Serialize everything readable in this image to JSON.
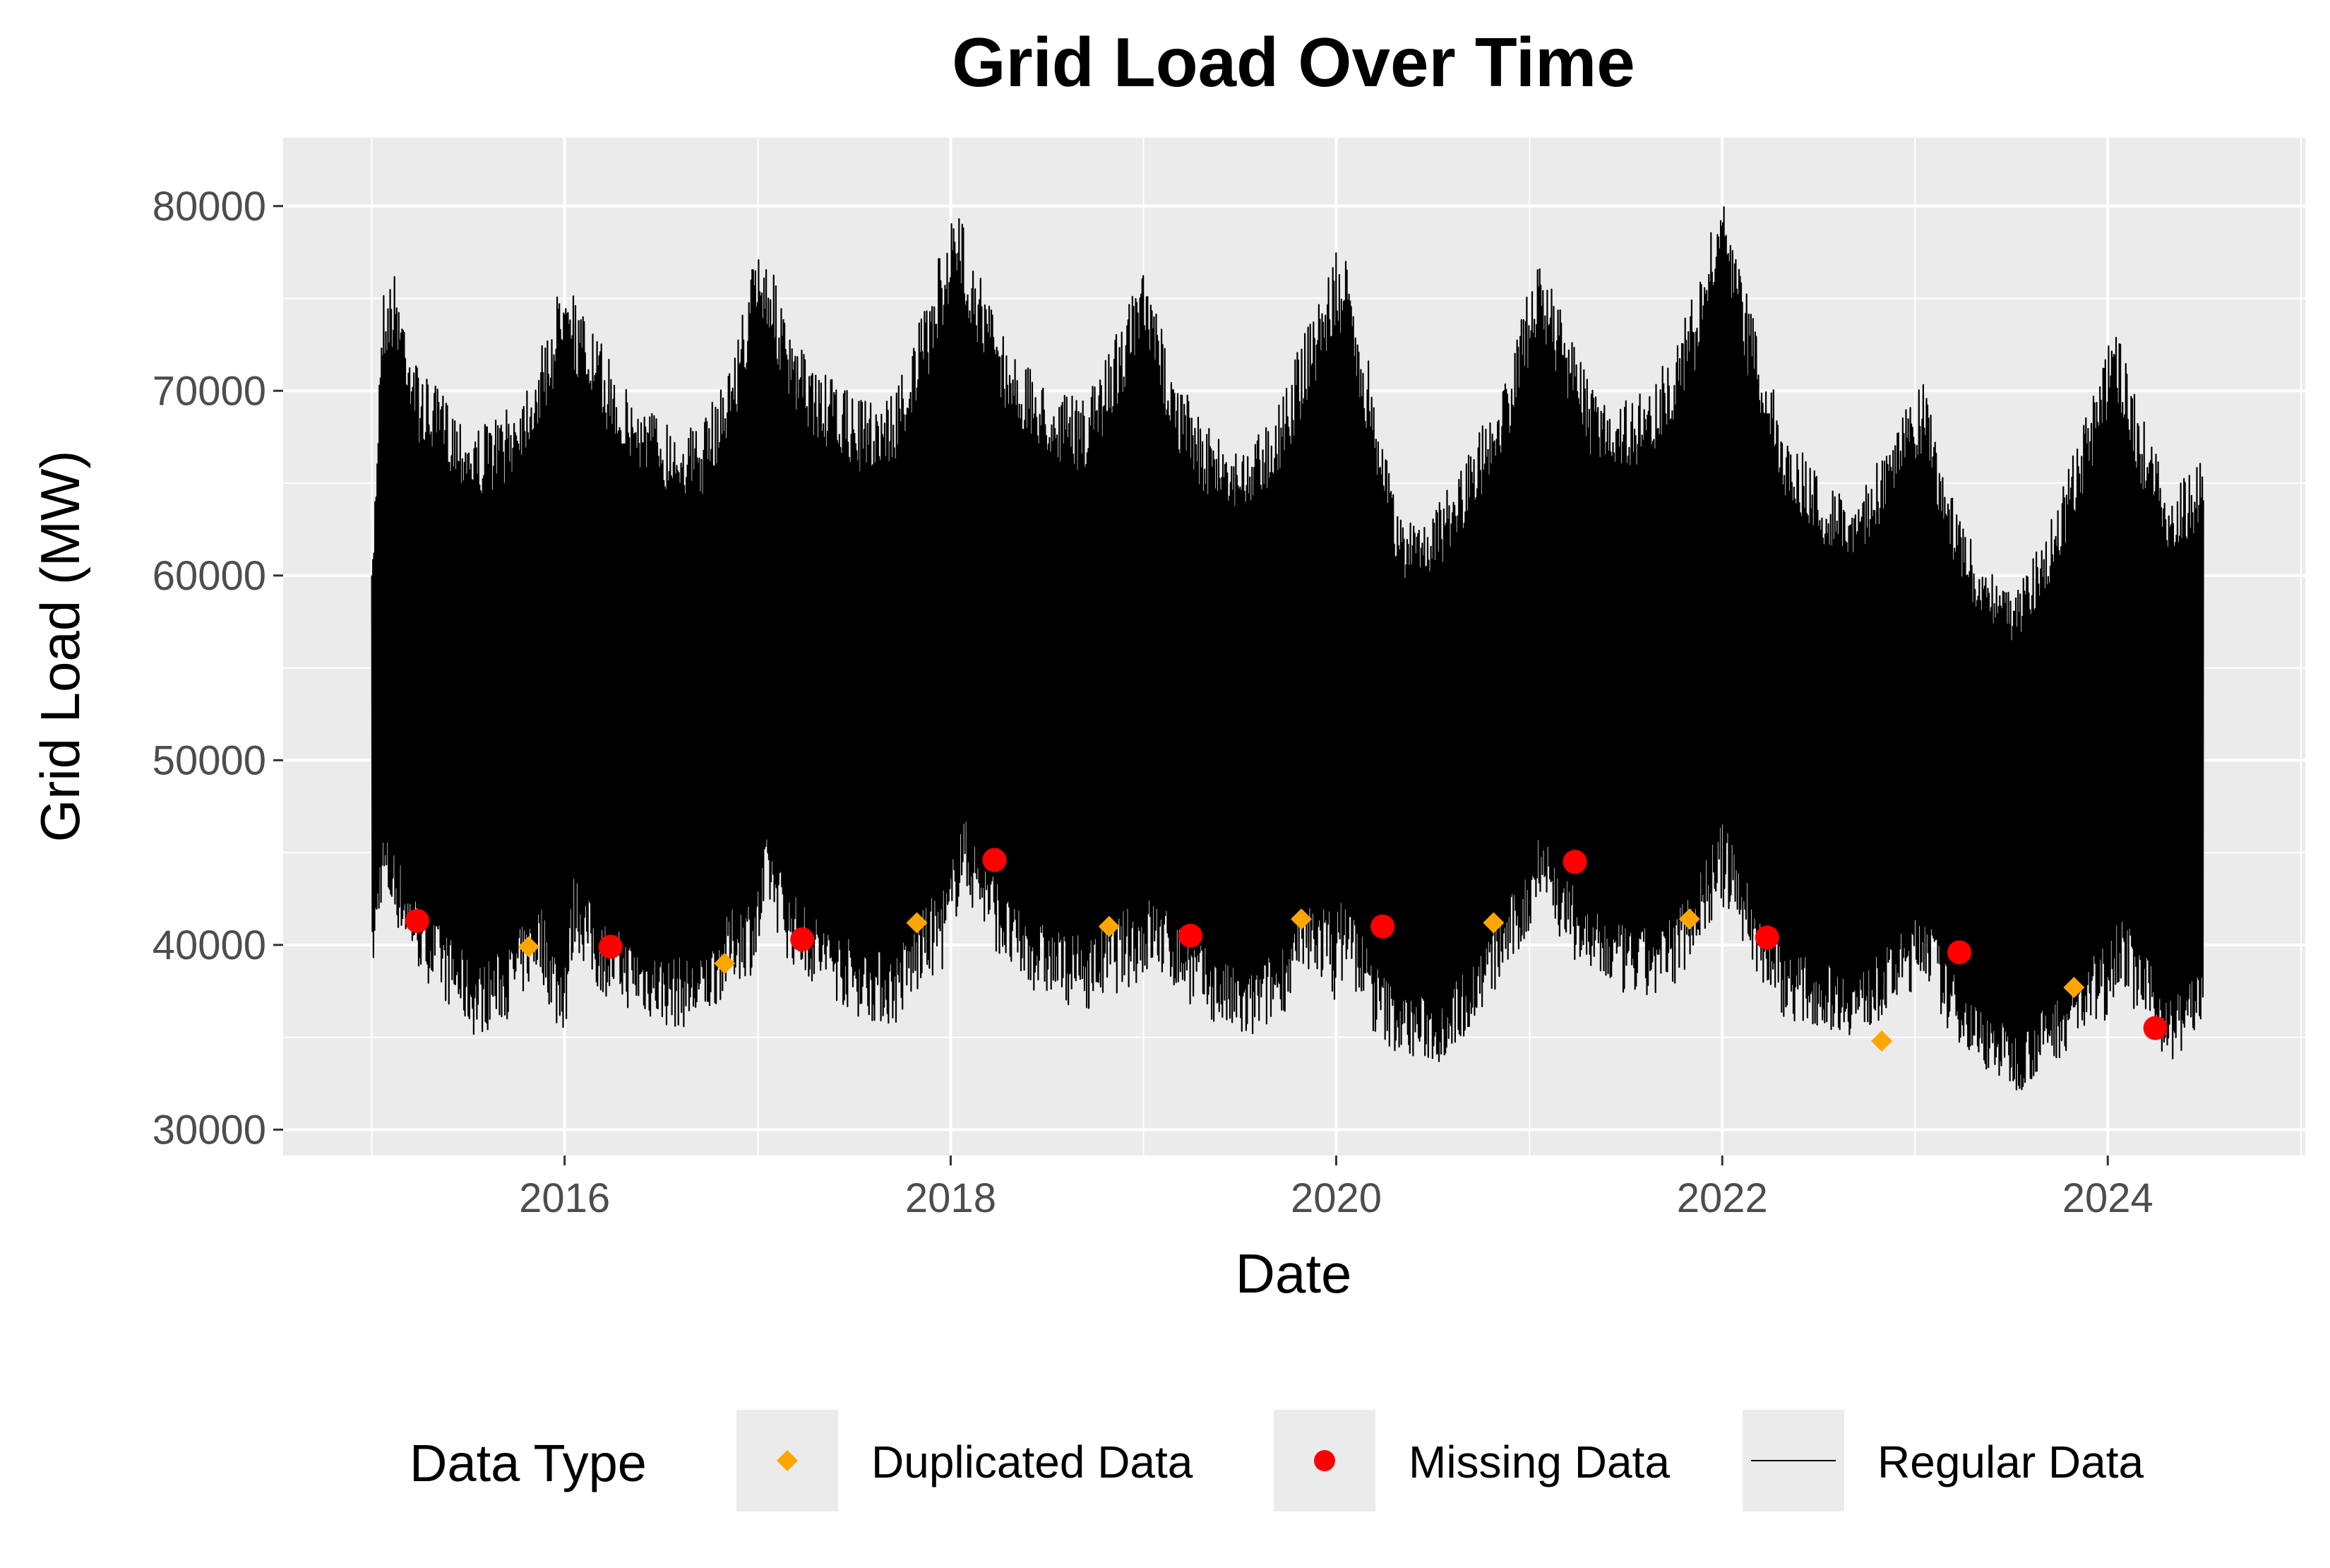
{
  "chart_data": {
    "type": "line",
    "title": "Grid Load Over Time",
    "xlabel": "Date",
    "ylabel": "Grid Load (MW)",
    "xlim": [
      "2014-07-17",
      "2025-01-09"
    ],
    "ylim": [
      28600,
      83700
    ],
    "x_ticks": [
      "2016",
      "2018",
      "2020",
      "2022",
      "2024"
    ],
    "y_ticks": [
      30000,
      40000,
      50000,
      60000,
      70000,
      80000
    ],
    "grid": true,
    "legend_position": "bottom",
    "legend": {
      "title": "Data Type",
      "items": [
        {
          "label": "Duplicated Data",
          "shape": "diamond",
          "color": "#FFA500"
        },
        {
          "label": "Missing Data",
          "shape": "circle",
          "color": "#FF0000"
        },
        {
          "label": "Regular Data",
          "shape": "line",
          "color": "#000000"
        }
      ]
    },
    "colors": {
      "panel_bg": "#EBEBEB",
      "grid": "#FFFFFF",
      "line": "#000000"
    },
    "series": [
      {
        "name": "Regular Data",
        "type": "line",
        "x": [
          "2015-01-01",
          "2015-01-20",
          "2015-02-15",
          "2015-04-01",
          "2015-06-01",
          "2015-07-15",
          "2015-09-15",
          "2015-11-15",
          "2015-12-20",
          "2016-01-05",
          "2016-01-20",
          "2016-03-01",
          "2016-05-01",
          "2016-07-15",
          "2016-09-15",
          "2016-11-15",
          "2016-12-30",
          "2017-01-20",
          "2017-03-01",
          "2017-05-01",
          "2017-07-15",
          "2017-09-15",
          "2017-11-20",
          "2017-12-30",
          "2018-01-20",
          "2018-03-01",
          "2018-05-01",
          "2018-07-15",
          "2018-09-15",
          "2018-11-20",
          "2018-12-30",
          "2019-01-20",
          "2019-03-01",
          "2019-05-01",
          "2019-07-15",
          "2019-09-15",
          "2019-11-20",
          "2019-12-30",
          "2020-01-20",
          "2020-03-15",
          "2020-05-01",
          "2020-07-15",
          "2020-09-15",
          "2020-11-20",
          "2020-12-30",
          "2021-01-20",
          "2021-03-01",
          "2021-05-01",
          "2021-07-15",
          "2021-09-15",
          "2021-11-20",
          "2021-12-30",
          "2022-01-20",
          "2022-03-01",
          "2022-05-01",
          "2022-07-15",
          "2022-09-15",
          "2022-11-20",
          "2022-12-30",
          "2023-01-20",
          "2023-03-01",
          "2023-05-01",
          "2023-07-15",
          "2023-09-15",
          "2023-11-20",
          "2023-12-30",
          "2024-01-20",
          "2024-03-01",
          "2024-05-01",
          "2024-06-30"
        ],
        "y_max": [
          60000,
          75500,
          76500,
          71000,
          69500,
          68000,
          69000,
          72000,
          75500,
          79000,
          75000,
          73000,
          70000,
          68500,
          68000,
          72000,
          78000,
          77500,
          73000,
          71000,
          69500,
          70000,
          75000,
          79500,
          79500,
          76000,
          72000,
          70000,
          69500,
          74000,
          76500,
          75000,
          71000,
          68000,
          67000,
          69500,
          74500,
          77500,
          77000,
          70000,
          63000,
          64000,
          67000,
          71000,
          75500,
          77000,
          74500,
          70000,
          69500,
          71500,
          76000,
          81000,
          78000,
          74000,
          68000,
          65000,
          64500,
          67500,
          70000,
          70500,
          65000,
          61000,
          59500,
          63000,
          68500,
          72500,
          73500,
          69000,
          64500,
          66500
        ],
        "y_min": [
          38000,
          42500,
          41000,
          38500,
          36500,
          35000,
          36000,
          38500,
          35000,
          35500,
          40000,
          37500,
          36500,
          35500,
          35500,
          38000,
          38500,
          42000,
          39000,
          37500,
          36000,
          35500,
          38000,
          39000,
          43000,
          41000,
          38000,
          37000,
          36500,
          37500,
          38000,
          38500,
          37500,
          36000,
          34500,
          36000,
          38500,
          37000,
          38500,
          35000,
          34000,
          33500,
          35500,
          38500,
          40000,
          43000,
          40000,
          38000,
          37000,
          37000,
          40000,
          42000,
          41500,
          38500,
          36000,
          35500,
          35000,
          36500,
          37500,
          38500,
          35500,
          33500,
          32000,
          33500,
          35000,
          36000,
          38000,
          36000,
          33500,
          35500
        ]
      },
      {
        "name": "Missing Data",
        "type": "scatter",
        "x": [
          "2015-03-28",
          "2016-03-28",
          "2017-03-26",
          "2018-03-25",
          "2019-03-31",
          "2020-03-29",
          "2021-03-28",
          "2022-03-27",
          "2023-03-26",
          "2024-03-31"
        ],
        "y": [
          41300,
          39900,
          40300,
          44600,
          40500,
          41000,
          44500,
          40400,
          39600,
          35500
        ]
      },
      {
        "name": "Duplicated Data",
        "type": "scatter",
        "x": [
          "2015-10-25",
          "2016-10-30",
          "2017-10-29",
          "2018-10-28",
          "2019-10-27",
          "2020-10-25",
          "2021-10-31",
          "2022-10-30",
          "2023-10-29"
        ],
        "y": [
          39900,
          39000,
          41200,
          41000,
          41400,
          41200,
          41400,
          34800,
          37700
        ]
      }
    ]
  }
}
